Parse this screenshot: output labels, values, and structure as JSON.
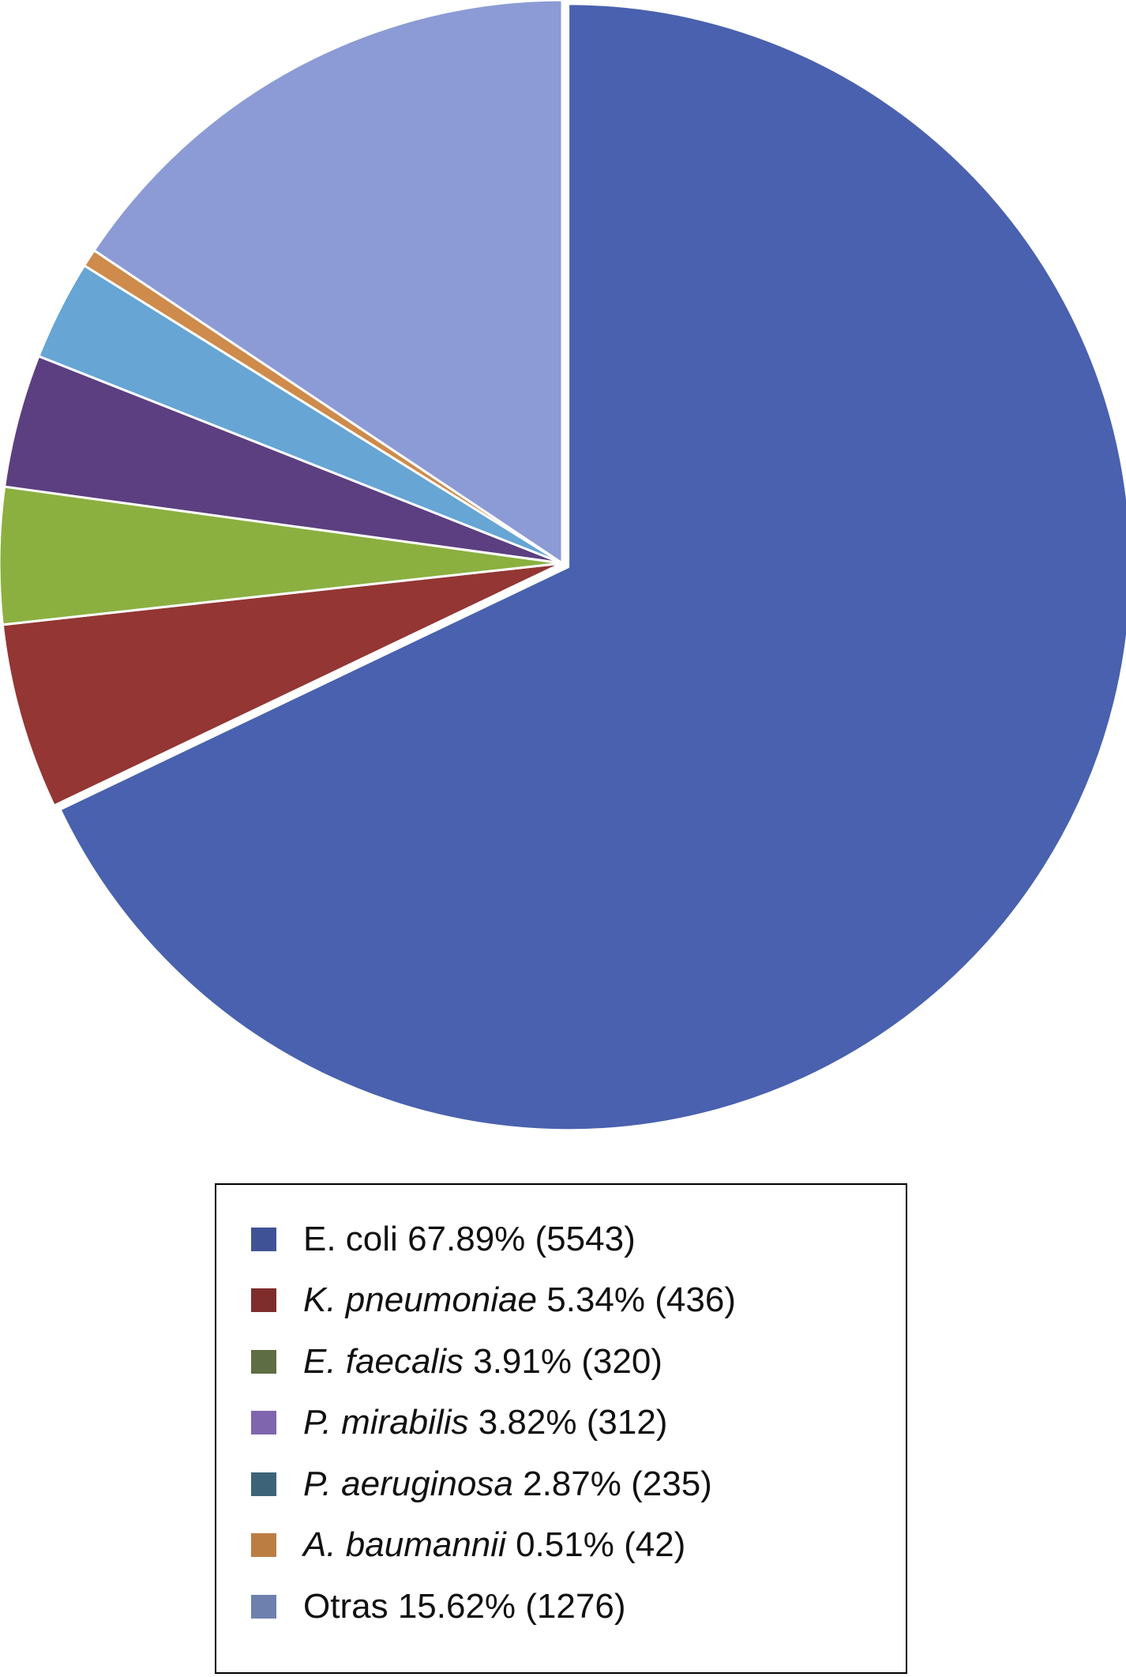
{
  "chart_data": {
    "type": "pie",
    "title": "",
    "start_angle": "12 o'clock, clockwise",
    "exploded": "E. coli",
    "slices": [
      {
        "name": "E. coli",
        "italic": false,
        "percent": 67.89,
        "count": 5543,
        "percent_label": "67.89%",
        "count_label": "(5543)",
        "color": "#4961AE",
        "legend_color": "#3F5295"
      },
      {
        "name": "K. pneumoniae",
        "italic": true,
        "percent": 5.34,
        "count": 436,
        "percent_label": "5.34%",
        "count_label": "(436)",
        "color": "#933634",
        "legend_color": "#7E2D2C"
      },
      {
        "name": "E. faecalis",
        "italic": true,
        "percent": 3.91,
        "count": 320,
        "percent_label": "3.91%",
        "count_label": "(320)",
        "color": "#8BB040",
        "legend_color": "#5F6D44"
      },
      {
        "name": "P. mirabilis",
        "italic": true,
        "percent": 3.82,
        "count": 312,
        "percent_label": "3.82%",
        "count_label": "(312)",
        "color": "#5C3F80",
        "legend_color": "#7E65AE"
      },
      {
        "name": "P. aeruginosa",
        "italic": true,
        "percent": 2.87,
        "count": 235,
        "percent_label": "2.87%",
        "count_label": "(235)",
        "color": "#66A5D4",
        "legend_color": "#3C6378"
      },
      {
        "name": "A. baumannii",
        "italic": true,
        "percent": 0.51,
        "count": 42,
        "percent_label": "0.51%",
        "count_label": "(42)",
        "color": "#CE8B4B",
        "legend_color": "#BC7D43"
      },
      {
        "name": "Otras",
        "italic": false,
        "percent": 15.62,
        "count": 1276,
        "percent_label": "15.62%",
        "count_label": "(1276)",
        "color": "#8C9BD5",
        "legend_color": "#6E80AD"
      }
    ]
  }
}
